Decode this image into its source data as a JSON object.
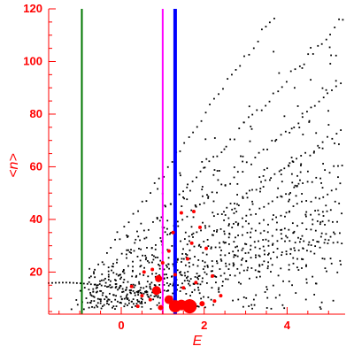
{
  "chart_data": {
    "type": "scatter",
    "xlabel": "E",
    "ylabel": "<n>",
    "xlim": [
      -1.75,
      5.4
    ],
    "ylim": [
      4,
      120
    ],
    "x_ticks": [
      0,
      2,
      4
    ],
    "x_tick_labels": [
      "0",
      "2",
      "4"
    ],
    "y_ticks": [
      20,
      40,
      60,
      80,
      100,
      120
    ],
    "y_tick_labels": [
      "20",
      "40",
      "60",
      "80",
      "100",
      "120"
    ],
    "grid": false,
    "axis_color": "#ff0000",
    "vertical_lines": [
      {
        "x": -0.95,
        "color": "#007700",
        "name": "green line"
      },
      {
        "x": 1.0,
        "color": "#ff00ff",
        "name": "magenta line"
      },
      {
        "x": 1.3,
        "color": "#0000ff",
        "name": "blue line"
      }
    ],
    "red_markers": [
      {
        "x": 0.85,
        "y": 13.0,
        "size": 5
      },
      {
        "x": 0.9,
        "y": 17.5,
        "size": 4
      },
      {
        "x": 0.75,
        "y": 21.0,
        "size": 2
      },
      {
        "x": 1.15,
        "y": 28.0,
        "size": 2
      },
      {
        "x": 1.15,
        "y": 9.5,
        "size": 5
      },
      {
        "x": 1.3,
        "y": 7.0,
        "size": 7
      },
      {
        "x": 1.45,
        "y": 7.5,
        "size": 6
      },
      {
        "x": 1.65,
        "y": 7.0,
        "size": 8
      },
      {
        "x": 1.95,
        "y": 8.0,
        "size": 3
      },
      {
        "x": 1.6,
        "y": 25.0,
        "size": 2
      },
      {
        "x": 1.7,
        "y": 31.0,
        "size": 2
      },
      {
        "x": 1.9,
        "y": 37.0,
        "size": 2
      },
      {
        "x": 2.05,
        "y": 29.0,
        "size": 2
      },
      {
        "x": 1.45,
        "y": 42.5,
        "size": 2
      },
      {
        "x": 2.4,
        "y": 11.0,
        "size": 2
      },
      {
        "x": 0.5,
        "y": 11.0,
        "size": 2
      },
      {
        "x": 0.25,
        "y": 14.5,
        "size": 2
      },
      {
        "x": 0.7,
        "y": 9.5,
        "size": 2
      },
      {
        "x": 1.3,
        "y": 19.0,
        "size": 2
      },
      {
        "x": 1.5,
        "y": 14.0,
        "size": 2
      },
      {
        "x": 1.8,
        "y": 16.0,
        "size": 2
      },
      {
        "x": 0.55,
        "y": 20.0,
        "size": 2
      },
      {
        "x": 1.0,
        "y": 23.5,
        "size": 2
      },
      {
        "x": 1.75,
        "y": 43.0,
        "size": 2
      },
      {
        "x": 1.25,
        "y": 35.0,
        "size": 2
      },
      {
        "x": 2.2,
        "y": 18.5,
        "size": 2
      },
      {
        "x": 0.4,
        "y": 7.0,
        "size": 2
      },
      {
        "x": 0.95,
        "y": 6.5,
        "size": 3
      },
      {
        "x": 2.25,
        "y": 9.0,
        "size": 2
      }
    ]
  }
}
